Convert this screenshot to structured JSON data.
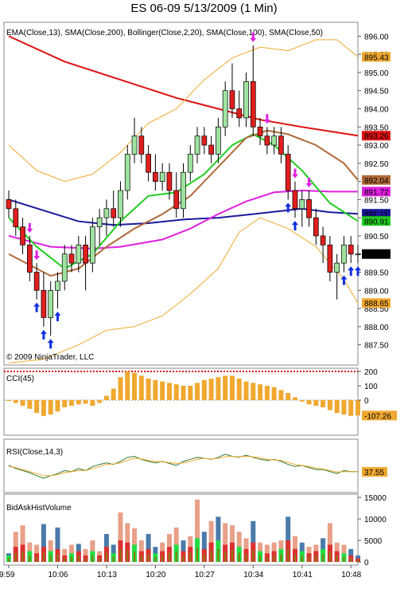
{
  "window_title": "ES 06-09  5/13/2009 (1 Min)",
  "copyright": "© 2009 NinjaTrader, LLC",
  "chart_data": [
    {
      "type": "candlestick",
      "title": "EMA(Close,13), SMA(Close,200), Bollinger(Close,2,20), SMA(Close,100), SMA(Close,50)",
      "ylim": [
        887.25,
        896.25
      ],
      "y_ticks": [
        887.5,
        888.0,
        888.5,
        889.0,
        889.5,
        890.0,
        890.5,
        891.0,
        891.5,
        892.0,
        892.5,
        893.0,
        893.5,
        894.0,
        894.5,
        895.0,
        895.5,
        896.0
      ],
      "y_tick_labels": [
        "887.50",
        "888.00",
        "888.50",
        "889.00",
        "889.50",
        "890.00",
        "890.50",
        "891.00",
        "891.50",
        "892.00",
        "892.50",
        "893.00",
        "893.50",
        "894.00",
        "894.50",
        "895.00",
        "895.50",
        "896.00"
      ],
      "x_tick_labels": [
        "9:59",
        "10:06",
        "10:13",
        "10:20",
        "10:27",
        "10:34",
        "10:41",
        "10:48"
      ],
      "x_tick_index": [
        0,
        7,
        14,
        21,
        28,
        35,
        42,
        49
      ],
      "ohlc": [
        [
          891.5,
          891.75,
          891.0,
          891.25
        ],
        [
          891.25,
          891.5,
          890.5,
          890.75
        ],
        [
          890.75,
          891.0,
          890.0,
          890.25
        ],
        [
          890.25,
          890.5,
          889.25,
          889.5
        ],
        [
          889.5,
          889.75,
          888.75,
          889.0
        ],
        [
          889.0,
          889.5,
          888.0,
          888.25
        ],
        [
          888.25,
          889.25,
          887.75,
          889.0
        ],
        [
          889.0,
          889.5,
          888.5,
          889.25
        ],
        [
          889.25,
          890.25,
          889.0,
          890.0
        ],
        [
          890.0,
          890.25,
          889.5,
          889.75
        ],
        [
          889.75,
          890.5,
          889.5,
          890.25
        ],
        [
          890.25,
          890.5,
          889.0,
          889.75
        ],
        [
          889.75,
          891.0,
          889.5,
          890.75
        ],
        [
          890.75,
          891.25,
          890.25,
          891.0
        ],
        [
          891.0,
          891.5,
          890.5,
          891.25
        ],
        [
          891.25,
          891.75,
          890.75,
          891.0
        ],
        [
          891.0,
          892.0,
          890.75,
          891.75
        ],
        [
          891.75,
          893.0,
          891.5,
          892.75
        ],
        [
          892.75,
          893.75,
          892.5,
          893.25
        ],
        [
          893.25,
          893.5,
          892.5,
          892.75
        ],
        [
          892.75,
          893.0,
          892.0,
          892.25
        ],
        [
          892.25,
          892.75,
          891.75,
          892.0
        ],
        [
          892.0,
          892.5,
          891.75,
          892.25
        ],
        [
          892.25,
          892.5,
          891.5,
          891.75
        ],
        [
          891.75,
          892.25,
          891.0,
          891.25
        ],
        [
          891.25,
          892.5,
          891.0,
          892.25
        ],
        [
          892.25,
          893.0,
          892.0,
          892.75
        ],
        [
          892.75,
          893.5,
          892.5,
          893.25
        ],
        [
          893.25,
          893.5,
          892.75,
          893.0
        ],
        [
          893.0,
          893.25,
          892.5,
          892.75
        ],
        [
          892.75,
          893.75,
          892.5,
          893.5
        ],
        [
          893.5,
          894.75,
          893.25,
          894.5
        ],
        [
          894.5,
          895.25,
          893.75,
          894.0
        ],
        [
          894.0,
          894.5,
          893.5,
          893.75
        ],
        [
          893.75,
          895.0,
          893.5,
          894.75
        ],
        [
          894.75,
          895.75,
          893.25,
          893.5
        ],
        [
          893.5,
          893.75,
          893.0,
          893.25
        ],
        [
          893.25,
          893.5,
          892.75,
          893.0
        ],
        [
          893.0,
          893.5,
          892.75,
          893.25
        ],
        [
          893.25,
          893.5,
          892.5,
          892.75
        ],
        [
          892.75,
          893.0,
          891.5,
          891.75
        ],
        [
          891.75,
          892.0,
          891.0,
          891.25
        ],
        [
          891.25,
          891.75,
          890.75,
          891.5
        ],
        [
          891.5,
          891.75,
          890.75,
          891.0
        ],
        [
          891.0,
          891.25,
          890.25,
          890.5
        ],
        [
          890.5,
          890.75,
          889.75,
          890.25
        ],
        [
          890.25,
          890.5,
          889.25,
          889.5
        ],
        [
          889.5,
          890.0,
          888.75,
          889.75
        ],
        [
          889.75,
          890.5,
          889.5,
          890.25
        ],
        [
          890.25,
          890.5,
          889.75,
          890.0
        ],
        [
          890.0,
          890.25,
          889.75,
          890.0
        ]
      ],
      "overlays": [
        {
          "name": "SMA(Close,200)",
          "color": "#dd1111",
          "points": [
            [
              0,
              896.0
            ],
            [
              8,
              895.3
            ],
            [
              16,
              894.8
            ],
            [
              24,
              894.3
            ],
            [
              30,
              894.0
            ],
            [
              36,
              893.7
            ],
            [
              42,
              893.5
            ],
            [
              50,
              893.26
            ]
          ]
        },
        {
          "name": "SMA(Close,100)",
          "color": "#1a1a99",
          "points": [
            [
              0,
              891.5
            ],
            [
              5,
              891.2
            ],
            [
              10,
              890.9
            ],
            [
              15,
              890.8
            ],
            [
              20,
              890.85
            ],
            [
              25,
              890.95
            ],
            [
              30,
              891.0
            ],
            [
              35,
              891.1
            ],
            [
              42,
              891.25
            ],
            [
              46,
              891.15
            ],
            [
              50,
              891.11
            ]
          ]
        },
        {
          "name": "SMA(Close,50)",
          "color": "#e020e0",
          "points": [
            [
              0,
              890.5
            ],
            [
              6,
              890.2
            ],
            [
              12,
              890.15
            ],
            [
              16,
              890.2
            ],
            [
              22,
              890.4
            ],
            [
              26,
              890.7
            ],
            [
              30,
              891.1
            ],
            [
              34,
              891.45
            ],
            [
              38,
              891.7
            ],
            [
              42,
              891.75
            ],
            [
              46,
              891.72
            ],
            [
              50,
              891.72
            ]
          ]
        },
        {
          "name": "EMA(Close,13)",
          "color": "#22cc22",
          "points": [
            [
              0,
              891.0
            ],
            [
              4,
              890.2
            ],
            [
              8,
              889.6
            ],
            [
              12,
              890.0
            ],
            [
              16,
              890.9
            ],
            [
              20,
              891.6
            ],
            [
              24,
              891.7
            ],
            [
              28,
              892.2
            ],
            [
              32,
              893.0
            ],
            [
              35,
              893.3
            ],
            [
              38,
              893.0
            ],
            [
              42,
              892.3
            ],
            [
              46,
              891.4
            ],
            [
              50,
              890.91
            ]
          ]
        },
        {
          "name": "Bollinger Middle",
          "color": "#b06a3a",
          "points": [
            [
              0,
              890.0
            ],
            [
              6,
              889.4
            ],
            [
              10,
              889.6
            ],
            [
              14,
              890.2
            ],
            [
              18,
              890.7
            ],
            [
              22,
              891.1
            ],
            [
              26,
              891.6
            ],
            [
              30,
              892.4
            ],
            [
              34,
              893.2
            ],
            [
              37,
              893.4
            ],
            [
              40,
              893.3
            ],
            [
              44,
              893.0
            ],
            [
              48,
              892.5
            ],
            [
              50,
              892.04
            ]
          ]
        },
        {
          "name": "Bollinger Upper",
          "color": "#f0a830",
          "points": [
            [
              0,
              893.0
            ],
            [
              4,
              892.3
            ],
            [
              8,
              892.0
            ],
            [
              12,
              892.2
            ],
            [
              16,
              892.8
            ],
            [
              20,
              893.6
            ],
            [
              24,
              894.0
            ],
            [
              28,
              894.8
            ],
            [
              32,
              895.4
            ],
            [
              36,
              895.7
            ],
            [
              40,
              895.6
            ],
            [
              44,
              895.9
            ],
            [
              47,
              895.9
            ],
            [
              50,
              895.43
            ]
          ]
        },
        {
          "name": "Bollinger Lower",
          "color": "#f0a830",
          "points": [
            [
              0,
              887.0
            ],
            [
              5,
              887.1
            ],
            [
              10,
              887.5
            ],
            [
              14,
              887.9
            ],
            [
              18,
              888.0
            ],
            [
              22,
              888.3
            ],
            [
              26,
              888.9
            ],
            [
              30,
              889.6
            ],
            [
              33,
              890.6
            ],
            [
              36,
              891.0
            ],
            [
              40,
              890.7
            ],
            [
              44,
              890.2
            ],
            [
              48,
              889.3
            ],
            [
              50,
              888.65
            ]
          ]
        }
      ],
      "right_labels": [
        {
          "value": "895.43",
          "y": 895.43,
          "color": "#f0a830"
        },
        {
          "value": "893.26",
          "y": 893.26,
          "color": "#dd1111"
        },
        {
          "value": "892.04",
          "y": 892.04,
          "color": "#b06a3a"
        },
        {
          "value": "891.72",
          "y": 891.72,
          "color": "#e020e0"
        },
        {
          "value": "891.11",
          "y": 891.11,
          "color": "#1a1a99"
        },
        {
          "value": "890.91",
          "y": 890.91,
          "color": "#22cc22"
        },
        {
          "value": "890.00",
          "y": 890.0,
          "color": "#000000"
        },
        {
          "value": "888.65",
          "y": 888.65,
          "color": "#f0a830"
        }
      ],
      "buy_arrows": [
        4,
        5,
        6,
        7,
        40,
        41,
        48,
        49,
        50
      ],
      "sell_arrows": [
        3,
        4,
        35,
        37,
        41,
        43
      ]
    },
    {
      "type": "bar",
      "title": "CCI(45)",
      "ylim": [
        -200,
        200
      ],
      "y_ticks": [
        200,
        100,
        0,
        -100
      ],
      "y_tick_labels": [
        "200",
        "100",
        "0"
      ],
      "values": [
        -5,
        -20,
        -40,
        -60,
        -90,
        -110,
        -100,
        -80,
        -50,
        -40,
        -30,
        -25,
        -40,
        -20,
        30,
        80,
        160,
        200,
        190,
        170,
        150,
        140,
        130,
        120,
        110,
        100,
        100,
        120,
        140,
        150,
        160,
        170,
        170,
        150,
        130,
        120,
        110,
        100,
        90,
        70,
        50,
        20,
        -10,
        -30,
        -40,
        -50,
        -70,
        -90,
        -100,
        -110,
        -107
      ],
      "right_label": {
        "value": "-107.26",
        "y": -107.26,
        "color": "#f0a830"
      },
      "bar_color": "#f0a830"
    },
    {
      "type": "line",
      "title": "RSI(Close,14,3)",
      "ylim": [
        0,
        100
      ],
      "right_label": {
        "value": "37.55",
        "y": 37.55,
        "color": "#f0a830"
      },
      "series": [
        {
          "color": "#2c7a2c",
          "values": [
            50,
            44,
            40,
            36,
            30,
            25,
            30,
            34,
            40,
            38,
            44,
            40,
            48,
            52,
            55,
            52,
            58,
            66,
            68,
            62,
            58,
            55,
            58,
            54,
            50,
            58,
            62,
            66,
            64,
            62,
            66,
            72,
            68,
            66,
            70,
            66,
            62,
            60,
            62,
            58,
            52,
            48,
            50,
            46,
            42,
            42,
            38,
            34,
            40,
            38,
            38
          ]
        },
        {
          "color": "#f0a830",
          "values": [
            48,
            46,
            42,
            38,
            34,
            30,
            30,
            32,
            36,
            38,
            40,
            40,
            44,
            48,
            52,
            53,
            55,
            60,
            64,
            63,
            60,
            58,
            57,
            56,
            54,
            55,
            58,
            62,
            64,
            63,
            64,
            67,
            68,
            67,
            68,
            67,
            65,
            62,
            61,
            60,
            56,
            52,
            50,
            48,
            45,
            43,
            40,
            37,
            38,
            38,
            37.55
          ]
        }
      ]
    },
    {
      "type": "stacked_bar",
      "title": "BidAskHistVolume",
      "ylim": [
        0,
        15000
      ],
      "y_ticks": [
        15000,
        10000,
        5000,
        0
      ],
      "y_tick_labels": [
        "15000",
        "10000",
        "5000",
        "0"
      ],
      "total_color": "#e8a088",
      "bid_color": "#4a7aaa",
      "ask_color": "#22dd44",
      "base_color": "#8a7a10",
      "totals": [
        2000,
        7000,
        8500,
        4500,
        4000,
        8800,
        5000,
        8000,
        3000,
        4000,
        4200,
        3000,
        5000,
        2500,
        6500,
        4000,
        11500,
        9000,
        7800,
        5000,
        6500,
        3500,
        4500,
        6500,
        8000,
        5000,
        6000,
        14500,
        7000,
        9500,
        10500,
        9000,
        8500,
        7000,
        5500,
        9500,
        4500,
        4000,
        4500,
        5000,
        10500,
        6000,
        4500,
        3500,
        4000,
        5500,
        9000,
        4500,
        4000,
        3000,
        1500
      ],
      "values": [
        1500,
        3500,
        4000,
        2500,
        2000,
        3500,
        2500,
        3000,
        1500,
        2000,
        2500,
        1500,
        2500,
        1500,
        3500,
        2000,
        5000,
        4500,
        4000,
        2500,
        3000,
        2000,
        2500,
        3500,
        4000,
        2500,
        3500,
        5500,
        3000,
        4500,
        5000,
        4000,
        4500,
        3500,
        3000,
        4500,
        2500,
        2000,
        2500,
        3000,
        5000,
        3000,
        2500,
        2000,
        2500,
        3000,
        4000,
        2500,
        2000,
        1500,
        800
      ]
    }
  ]
}
